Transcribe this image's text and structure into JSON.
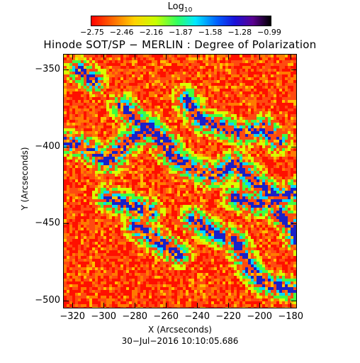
{
  "colorbar": {
    "title": "Log",
    "title_sub": "10",
    "ticks": [
      "−2.75",
      "−2.46",
      "−2.16",
      "−1.87",
      "−1.58",
      "−1.28",
      "−0.99"
    ],
    "colors": [
      "#ff0000",
      "#ff6a00",
      "#ffd200",
      "#c8ff00",
      "#30ff60",
      "#00e8ff",
      "#0060ff",
      "#1a10d8",
      "#5a0090",
      "#000000"
    ]
  },
  "title": "Hinode SOT/SP − MERLIN : Degree of Polarization",
  "chart_data": {
    "type": "heatmap",
    "xlabel": "X (Arcseconds)",
    "ylabel": "Y (Arcseconds)",
    "x_ticks": [
      "−320",
      "−300",
      "−280",
      "−260",
      "−240",
      "−220",
      "−200",
      "−180"
    ],
    "x_tick_values": [
      -320,
      -300,
      -280,
      -260,
      -240,
      -220,
      -200,
      -180
    ],
    "y_ticks": [
      "−350",
      "−400",
      "−450",
      "−500"
    ],
    "y_tick_values": [
      -350,
      -400,
      -450,
      -500
    ],
    "xlim": [
      -326,
      -176
    ],
    "ylim": [
      -505,
      -340
    ],
    "colorbar_range": [
      -2.75,
      -0.99
    ],
    "colormap": "red-orange-yellow-green-cyan-blue-purple-black",
    "note_text": ""
  },
  "date_text": "30−Jul−2016 10:10:05.686"
}
